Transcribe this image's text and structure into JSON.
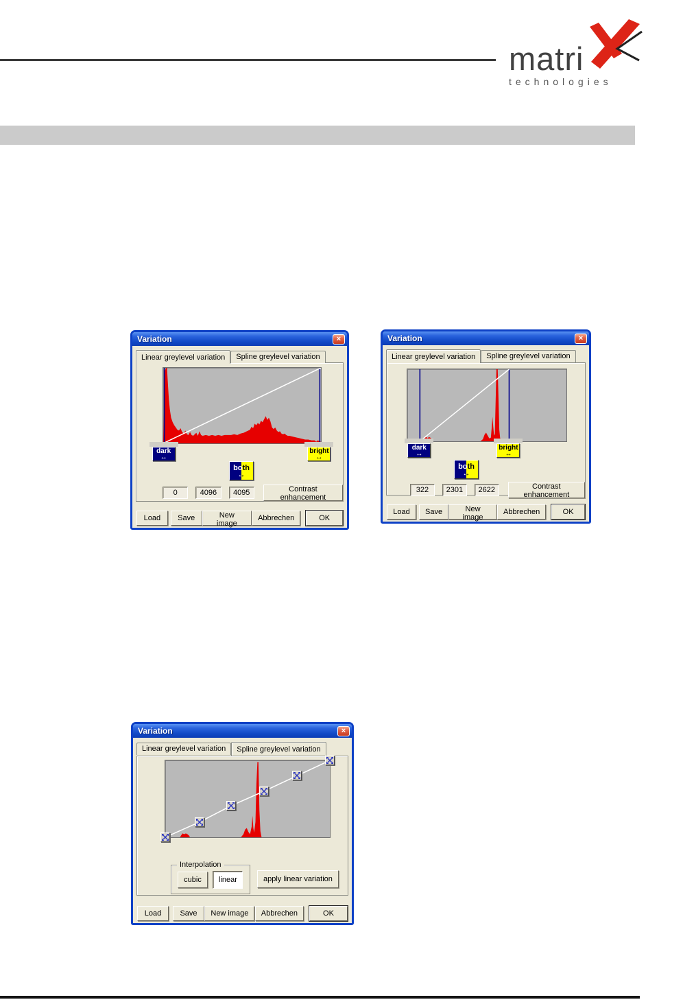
{
  "logo": {
    "brand": "matri",
    "sub": "technologies",
    "x_color": "#dd2417"
  },
  "icons": {
    "close": "×",
    "resize_arrows": "↔",
    "move_handle": "four-way-diagonal-arrows"
  },
  "colors": {
    "titlebar_blue": "#1149c6",
    "window_border": "#0e41c6",
    "dialog_bg": "#ece9d8",
    "histogram_red": "#e60000",
    "marker_navy": "#00008b",
    "curve_white": "#ffffff",
    "dark_badge": "#000080",
    "bright_badge": "#ffff00",
    "plot_bg": "#b9b9b9",
    "header_bar_gray": "#cbcbcb"
  },
  "dialogs": {
    "d1": {
      "title": "Variation",
      "tabs": [
        "Linear greylevel variation",
        "Spline greylevel variation"
      ],
      "dark_label": "dark",
      "bright_label": "bright",
      "both_label": "both",
      "fields": {
        "dark": "0",
        "width": "4096",
        "bright": "4095"
      },
      "contrast_button": "Contrast enhancement",
      "buttons": [
        "Load",
        "Save",
        "New image",
        "Abbrechen",
        "OK"
      ],
      "plot": {
        "type": "histogram",
        "histogram": [
          [
            0,
            2
          ],
          [
            0.6,
            55
          ],
          [
            1,
            96
          ],
          [
            1.8,
            100
          ],
          [
            2.4,
            100
          ],
          [
            3,
            78
          ],
          [
            3.6,
            58
          ],
          [
            4.2,
            45
          ],
          [
            5,
            34
          ],
          [
            6,
            28
          ],
          [
            7,
            24
          ],
          [
            8,
            21
          ],
          [
            9,
            18
          ],
          [
            10,
            17
          ],
          [
            11,
            20
          ],
          [
            12,
            15
          ],
          [
            13,
            13
          ],
          [
            14,
            17
          ],
          [
            15,
            12
          ],
          [
            16,
            11
          ],
          [
            17,
            15
          ],
          [
            18,
            11
          ],
          [
            19,
            10
          ],
          [
            20,
            12
          ],
          [
            21,
            14
          ],
          [
            22,
            10
          ],
          [
            23,
            16
          ],
          [
            24,
            11
          ],
          [
            25,
            10
          ],
          [
            27,
            11
          ],
          [
            29,
            10
          ],
          [
            31,
            11
          ],
          [
            33,
            10
          ],
          [
            35,
            11
          ],
          [
            37,
            10
          ],
          [
            39,
            11
          ],
          [
            41,
            11
          ],
          [
            43,
            11
          ],
          [
            45,
            12
          ],
          [
            47,
            11
          ],
          [
            49,
            13
          ],
          [
            51,
            14
          ],
          [
            53,
            16
          ],
          [
            55,
            18
          ],
          [
            56,
            22
          ],
          [
            57,
            20
          ],
          [
            58,
            26
          ],
          [
            59,
            24
          ],
          [
            60,
            27
          ],
          [
            61,
            25
          ],
          [
            62,
            30
          ],
          [
            63,
            28
          ],
          [
            64,
            32
          ],
          [
            65,
            36
          ],
          [
            66,
            31
          ],
          [
            67,
            34
          ],
          [
            68,
            29
          ],
          [
            69,
            21
          ],
          [
            70,
            19
          ],
          [
            71,
            21
          ],
          [
            72,
            17
          ],
          [
            73,
            15
          ],
          [
            74,
            16
          ],
          [
            75,
            13
          ],
          [
            76,
            12
          ],
          [
            77,
            13
          ],
          [
            78,
            11
          ],
          [
            79,
            10
          ],
          [
            80,
            10
          ],
          [
            82,
            9
          ],
          [
            84,
            8
          ],
          [
            86,
            7
          ],
          [
            88,
            6
          ],
          [
            90,
            5
          ],
          [
            92,
            5
          ],
          [
            94,
            4
          ],
          [
            96,
            4
          ],
          [
            97,
            2
          ],
          [
            98,
            4
          ],
          [
            99,
            3
          ],
          [
            100,
            2
          ]
        ],
        "markers_pct": [
          0.7,
          99.3
        ],
        "line": [
          [
            0,
            100
          ],
          [
            100,
            0
          ]
        ]
      }
    },
    "d2": {
      "title": "Variation",
      "tabs": [
        "Linear greylevel variation",
        "Spline greylevel variation"
      ],
      "dark_label": "dark",
      "bright_label": "bright",
      "both_label": "both",
      "fields": {
        "dark": "322",
        "width": "2301",
        "bright": "2622"
      },
      "contrast_button": "Contrast enhancement",
      "buttons": [
        "Load",
        "Save",
        "New image",
        "Abbrechen",
        "OK"
      ],
      "plot": {
        "type": "histogram",
        "histogram": [
          [
            0,
            0
          ],
          [
            10,
            0
          ],
          [
            10.5,
            2
          ],
          [
            11,
            5
          ],
          [
            12,
            6
          ],
          [
            12.8,
            4
          ],
          [
            13.5,
            6
          ],
          [
            14.5,
            5
          ],
          [
            15.5,
            3
          ],
          [
            16,
            0
          ],
          [
            46,
            0
          ],
          [
            47.5,
            3
          ],
          [
            48.5,
            9
          ],
          [
            49.5,
            12
          ],
          [
            50.5,
            8
          ],
          [
            51.5,
            4
          ],
          [
            52.5,
            5
          ],
          [
            53,
            18
          ],
          [
            53.5,
            34
          ],
          [
            54,
            20
          ],
          [
            54.5,
            8
          ],
          [
            55,
            10
          ],
          [
            55.5,
            55
          ],
          [
            56,
            100
          ],
          [
            56.8,
            100
          ],
          [
            57.3,
            60
          ],
          [
            57.8,
            16
          ],
          [
            58.3,
            5
          ],
          [
            59,
            0
          ],
          [
            100,
            0
          ]
        ],
        "markers_pct": [
          7.9,
          64
        ],
        "line": [
          [
            7.9,
            100
          ],
          [
            64,
            0
          ]
        ]
      }
    },
    "d3": {
      "title": "Variation",
      "tabs": [
        "Linear greylevel variation",
        "Spline greylevel variation"
      ],
      "interpolation": {
        "group_label": "Interpolation",
        "cubic": "cubic",
        "linear": "linear",
        "apply": "apply linear variation"
      },
      "buttons": [
        "Load",
        "Save",
        "New image",
        "Abbrechen",
        "OK"
      ],
      "plot": {
        "type": "histogram-with-spline",
        "histogram": [
          [
            0,
            0
          ],
          [
            9,
            0
          ],
          [
            9.5,
            2
          ],
          [
            10.5,
            5
          ],
          [
            11.5,
            4
          ],
          [
            12.5,
            5
          ],
          [
            13.5,
            4
          ],
          [
            14.5,
            2
          ],
          [
            15,
            0
          ],
          [
            46,
            0
          ],
          [
            47.5,
            4
          ],
          [
            48.5,
            10
          ],
          [
            49.5,
            12
          ],
          [
            50.5,
            7
          ],
          [
            51.5,
            4
          ],
          [
            52.5,
            14
          ],
          [
            53,
            28
          ],
          [
            53.5,
            12
          ],
          [
            54,
            6
          ],
          [
            54.8,
            20
          ],
          [
            55.4,
            70
          ],
          [
            56,
            98
          ],
          [
            56.6,
            98
          ],
          [
            57.2,
            35
          ],
          [
            57.8,
            8
          ],
          [
            58.5,
            0
          ],
          [
            100,
            0
          ]
        ],
        "spline_handles": [
          [
            0,
            0
          ],
          [
            21,
            20
          ],
          [
            40,
            41
          ],
          [
            60,
            60
          ],
          [
            80,
            80
          ],
          [
            100,
            100
          ]
        ]
      }
    }
  }
}
